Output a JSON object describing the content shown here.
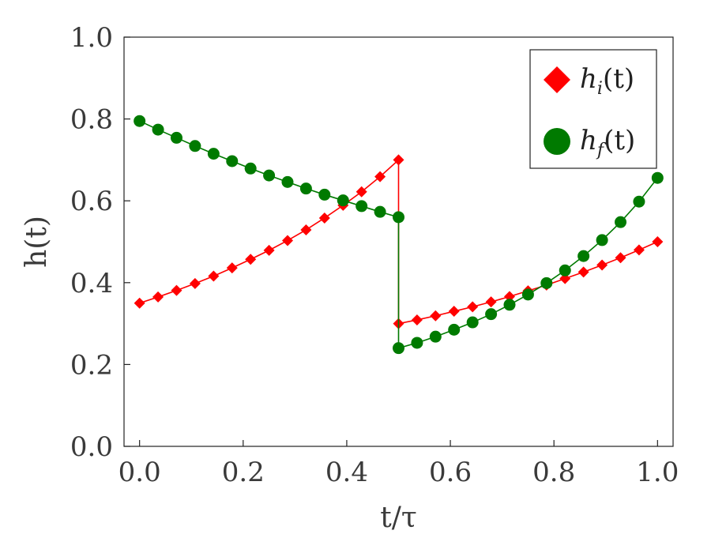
{
  "chart_data": {
    "type": "line",
    "xlabel": "t/τ",
    "ylabel": "h(t)",
    "xlim": [
      -0.03,
      1.03
    ],
    "ylim": [
      0.0,
      1.0
    ],
    "xticks": [
      "0.0",
      "0.2",
      "0.4",
      "0.6",
      "0.8",
      "1.0"
    ],
    "yticks": [
      "0.0",
      "0.2",
      "0.4",
      "0.6",
      "0.8",
      "1.0"
    ],
    "grid": false,
    "legend_position": "top-right",
    "series": [
      {
        "name": "h_i(t)",
        "legend_base": "h",
        "legend_sub": "i",
        "legend_arg": "(t)",
        "color": "#ff0000",
        "marker": "diamond",
        "points": [
          [
            0.0,
            0.35
          ],
          [
            0.0357,
            0.365
          ],
          [
            0.0714,
            0.381
          ],
          [
            0.1071,
            0.398
          ],
          [
            0.1429,
            0.416
          ],
          [
            0.1786,
            0.436
          ],
          [
            0.2143,
            0.457
          ],
          [
            0.25,
            0.479
          ],
          [
            0.2857,
            0.503
          ],
          [
            0.3214,
            0.529
          ],
          [
            0.3571,
            0.558
          ],
          [
            0.3929,
            0.589
          ],
          [
            0.4286,
            0.622
          ],
          [
            0.4643,
            0.659
          ],
          [
            0.5,
            0.7
          ],
          [
            0.5,
            0.3
          ],
          [
            0.5357,
            0.309
          ],
          [
            0.5714,
            0.319
          ],
          [
            0.6071,
            0.33
          ],
          [
            0.6429,
            0.341
          ],
          [
            0.6786,
            0.353
          ],
          [
            0.7143,
            0.366
          ],
          [
            0.75,
            0.38
          ],
          [
            0.7857,
            0.394
          ],
          [
            0.8214,
            0.41
          ],
          [
            0.8571,
            0.426
          ],
          [
            0.8929,
            0.443
          ],
          [
            0.9286,
            0.461
          ],
          [
            0.9643,
            0.48
          ],
          [
            1.0,
            0.5
          ]
        ]
      },
      {
        "name": "h_f(t)",
        "legend_base": "h",
        "legend_sub": "f",
        "legend_arg": "(t)",
        "color": "#007a00",
        "marker": "circle",
        "points": [
          [
            0.0,
            0.795
          ],
          [
            0.0357,
            0.774
          ],
          [
            0.0714,
            0.754
          ],
          [
            0.1071,
            0.734
          ],
          [
            0.1429,
            0.715
          ],
          [
            0.1786,
            0.697
          ],
          [
            0.2143,
            0.679
          ],
          [
            0.25,
            0.662
          ],
          [
            0.2857,
            0.646
          ],
          [
            0.3214,
            0.63
          ],
          [
            0.3571,
            0.615
          ],
          [
            0.3929,
            0.601
          ],
          [
            0.4286,
            0.587
          ],
          [
            0.4643,
            0.573
          ],
          [
            0.5,
            0.56
          ],
          [
            0.5,
            0.24
          ],
          [
            0.5357,
            0.253
          ],
          [
            0.5714,
            0.268
          ],
          [
            0.6071,
            0.285
          ],
          [
            0.6429,
            0.303
          ],
          [
            0.6786,
            0.323
          ],
          [
            0.7143,
            0.346
          ],
          [
            0.75,
            0.371
          ],
          [
            0.7857,
            0.399
          ],
          [
            0.8214,
            0.43
          ],
          [
            0.8571,
            0.465
          ],
          [
            0.8929,
            0.504
          ],
          [
            0.9286,
            0.548
          ],
          [
            0.9643,
            0.598
          ],
          [
            1.0,
            0.656
          ]
        ]
      }
    ]
  }
}
